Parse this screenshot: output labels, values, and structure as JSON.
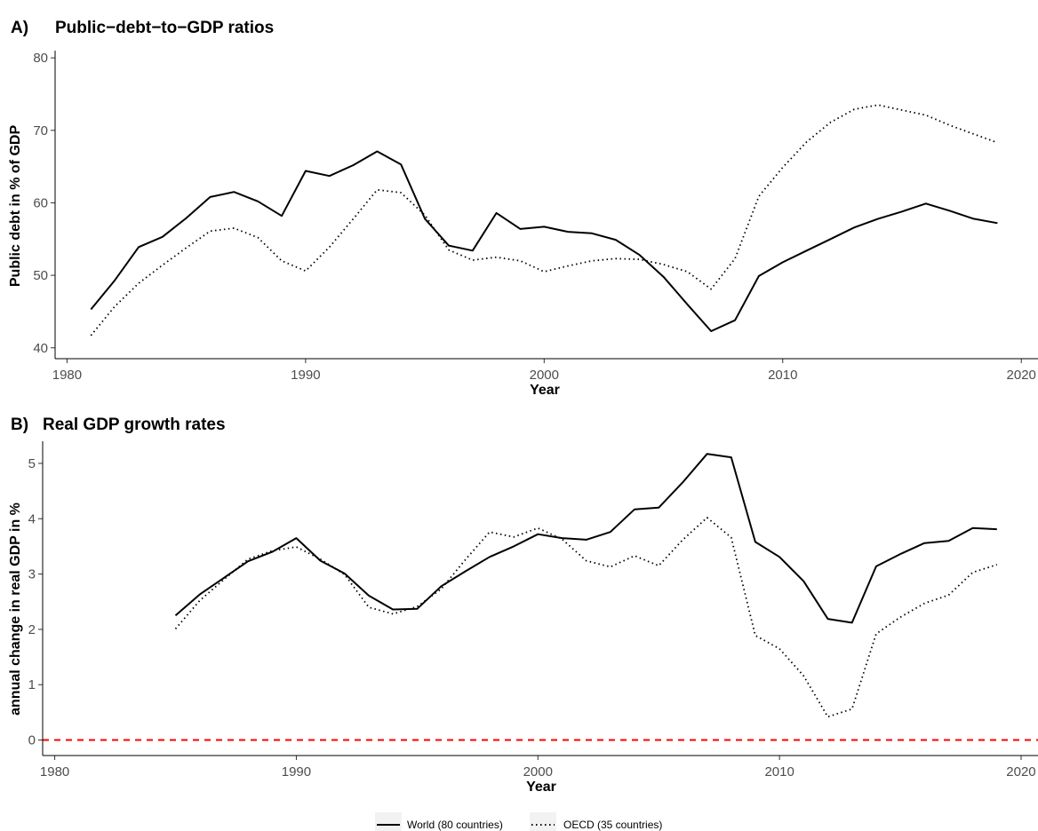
{
  "legend": {
    "items": [
      {
        "label": "World (80 countries)",
        "style": "solid"
      },
      {
        "label": "OECD (35 countries)",
        "style": "dotted"
      }
    ]
  },
  "chart_data": [
    {
      "type": "line",
      "panel": "A)",
      "title": "Public−debt−to−GDP ratios",
      "xlabel": "Year",
      "ylabel": "Public debt in % of GDP",
      "xlim": [
        1979.5,
        2020.7
      ],
      "ylim": [
        38.5,
        81
      ],
      "xticks": [
        1980,
        1990,
        2000,
        2010,
        2020
      ],
      "yticks": [
        40,
        50,
        60,
        70,
        80
      ],
      "grid": false,
      "series": [
        {
          "name": "World (80 countries)",
          "style": "solid",
          "x": [
            1981,
            1982,
            1983,
            1984,
            1985,
            1986,
            1987,
            1988,
            1989,
            1990,
            1991,
            1992,
            1993,
            1994,
            1995,
            1996,
            1997,
            1998,
            1999,
            2000,
            2001,
            2002,
            2003,
            2004,
            2005,
            2006,
            2007,
            2008,
            2009,
            2010,
            2011,
            2012,
            2013,
            2014,
            2015,
            2016,
            2017,
            2018,
            2019
          ],
          "values": [
            45.3,
            49.3,
            53.9,
            55.3,
            57.9,
            60.8,
            61.5,
            60.2,
            58.2,
            64.4,
            63.7,
            65.2,
            67.1,
            65.3,
            57.8,
            54.1,
            53.4,
            58.6,
            56.4,
            56.7,
            56.0,
            55.8,
            54.9,
            52.8,
            49.8,
            46.0,
            42.3,
            43.8,
            49.9,
            51.8,
            53.4,
            55.0,
            56.6,
            57.8,
            58.8,
            59.9,
            58.9,
            57.8,
            57.2
          ]
        },
        {
          "name": "OECD (35 countries)",
          "style": "dotted",
          "x": [
            1981,
            1982,
            1983,
            1984,
            1985,
            1986,
            1987,
            1988,
            1989,
            1990,
            1991,
            1992,
            1993,
            1994,
            1995,
            1996,
            1997,
            1998,
            1999,
            2000,
            2001,
            2002,
            2003,
            2004,
            2005,
            2006,
            2007,
            2008,
            2009,
            2010,
            2011,
            2012,
            2013,
            2014,
            2015,
            2016,
            2017,
            2018,
            2019
          ],
          "values": [
            41.7,
            45.7,
            48.9,
            51.4,
            53.8,
            56.1,
            56.5,
            55.2,
            52.0,
            50.6,
            53.9,
            57.8,
            61.8,
            61.4,
            58.3,
            53.5,
            52.1,
            52.5,
            52.0,
            50.5,
            51.3,
            52.0,
            52.3,
            52.2,
            51.5,
            50.5,
            48.1,
            52.3,
            60.9,
            64.9,
            68.4,
            71.1,
            72.9,
            73.5,
            72.8,
            72.1,
            70.7,
            69.5,
            68.3
          ]
        }
      ]
    },
    {
      "type": "line",
      "panel": "B)",
      "title": "Real GDP growth rates",
      "xlabel": "Year",
      "ylabel": "annual change in real GDP in %",
      "xlim": [
        1979.5,
        2020.7
      ],
      "ylim": [
        -0.28,
        5.4
      ],
      "xticks": [
        1980,
        1990,
        2000,
        2010,
        2020
      ],
      "yticks": [
        0,
        1,
        2,
        3,
        4,
        5
      ],
      "grid": false,
      "reference_line": {
        "y": 0,
        "color": "#ff0000",
        "style": "dashed"
      },
      "series": [
        {
          "name": "World (80 countries)",
          "style": "solid",
          "x": [
            1985,
            1986,
            1987,
            1988,
            1989,
            1990,
            1991,
            1992,
            1993,
            1994,
            1995,
            1996,
            1997,
            1998,
            1999,
            2000,
            2001,
            2002,
            2003,
            2004,
            2005,
            2006,
            2007,
            2008,
            2009,
            2010,
            2011,
            2012,
            2013,
            2014,
            2015,
            2016,
            2017,
            2018,
            2019
          ],
          "values": [
            2.25,
            2.63,
            2.93,
            3.23,
            3.4,
            3.65,
            3.24,
            3.01,
            2.61,
            2.36,
            2.37,
            2.78,
            3.05,
            3.31,
            3.5,
            3.72,
            3.65,
            3.62,
            3.76,
            4.17,
            4.2,
            4.66,
            5.17,
            5.11,
            3.58,
            3.31,
            2.87,
            2.19,
            2.12,
            3.14,
            3.36,
            3.56,
            3.6,
            3.83,
            3.81
          ]
        },
        {
          "name": "OECD (35 countries)",
          "style": "dotted",
          "x": [
            1985,
            1986,
            1987,
            1988,
            1989,
            1990,
            1991,
            1992,
            1993,
            1994,
            1995,
            1996,
            1997,
            1998,
            1999,
            2000,
            2001,
            2002,
            2003,
            2004,
            2005,
            2006,
            2007,
            2008,
            2009,
            2010,
            2011,
            2012,
            2013,
            2014,
            2015,
            2016,
            2017,
            2018,
            2019
          ],
          "values": [
            2.01,
            2.52,
            2.9,
            3.27,
            3.42,
            3.49,
            3.27,
            2.99,
            2.4,
            2.28,
            2.41,
            2.73,
            3.26,
            3.76,
            3.67,
            3.83,
            3.63,
            3.24,
            3.13,
            3.33,
            3.15,
            3.62,
            4.02,
            3.66,
            1.89,
            1.65,
            1.16,
            0.42,
            0.56,
            1.92,
            2.22,
            2.47,
            2.62,
            3.03,
            3.17
          ]
        }
      ]
    }
  ]
}
